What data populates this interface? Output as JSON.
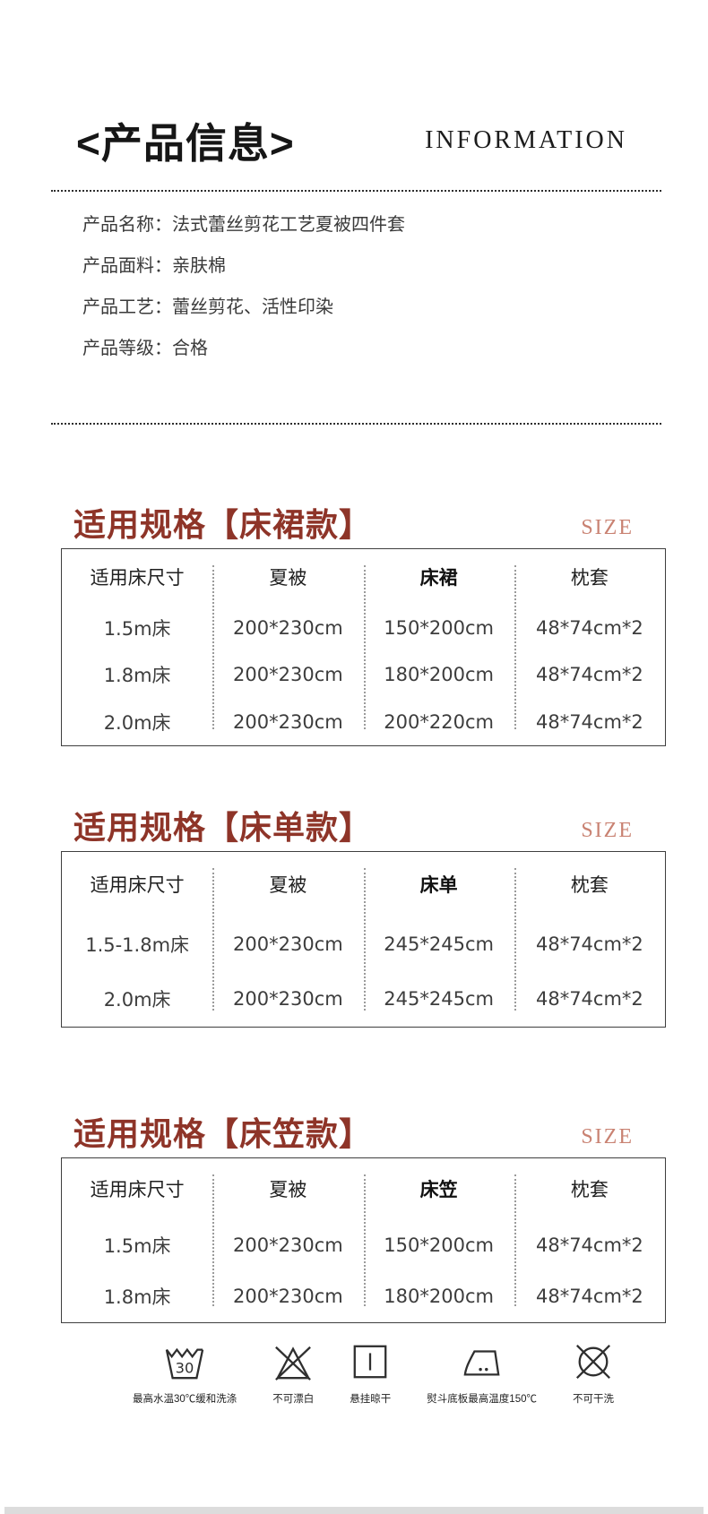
{
  "header": {
    "title": "<产品信息>",
    "subtitle": "INFORMATION"
  },
  "product_info": [
    {
      "label": "产品名称：",
      "value": "法式蕾丝剪花工艺夏被四件套"
    },
    {
      "label": "产品面料：",
      "value": "亲肤棉"
    },
    {
      "label": "产品工艺：",
      "value": "蕾丝剪花、活性印染"
    },
    {
      "label": "产品等级：",
      "value": "合格"
    }
  ],
  "sections": [
    {
      "title": "适用规格【床裙款】",
      "size_label": "SIZE",
      "table": {
        "headers": [
          "适用床尺寸",
          "夏被",
          "床裙",
          "枕套"
        ],
        "bold_col": 2,
        "rows": [
          [
            "1.5m床",
            "200*230cm",
            "150*200cm",
            "48*74cm*2"
          ],
          [
            "1.8m床",
            "200*230cm",
            "180*200cm",
            "48*74cm*2"
          ],
          [
            "2.0m床",
            "200*230cm",
            "200*220cm",
            "48*74cm*2"
          ]
        ]
      }
    },
    {
      "title": "适用规格【床单款】",
      "size_label": "SIZE",
      "table": {
        "headers": [
          "适用床尺寸",
          "夏被",
          "床单",
          "枕套"
        ],
        "bold_col": 2,
        "rows": [
          [
            "1.5-1.8m床",
            "200*230cm",
            "245*245cm",
            "48*74cm*2"
          ],
          [
            "2.0m床",
            "200*230cm",
            "245*245cm",
            "48*74cm*2"
          ]
        ]
      }
    },
    {
      "title": "适用规格【床笠款】",
      "size_label": "SIZE",
      "table": {
        "headers": [
          "适用床尺寸",
          "夏被",
          "床笠",
          "枕套"
        ],
        "bold_col": 2,
        "rows": [
          [
            "1.5m床",
            "200*230cm",
            "150*200cm",
            "48*74cm*2"
          ],
          [
            "1.8m床",
            "200*230cm",
            "180*200cm",
            "48*74cm*2"
          ]
        ]
      }
    }
  ],
  "care_icons": [
    {
      "name": "wash-30-icon",
      "glyph": "30",
      "label": "最高水温30℃缓和洗涤"
    },
    {
      "name": "no-bleach-icon",
      "label": "不可漂白"
    },
    {
      "name": "hang-dry-icon",
      "label": "悬挂晾干"
    },
    {
      "name": "iron-max-150-icon",
      "label": "熨斗底板最高温度150℃"
    },
    {
      "name": "no-dry-clean-icon",
      "label": "不可干洗"
    }
  ],
  "colors": {
    "accent": "#8e3428",
    "size_label": "#c98272",
    "text": "#3a3a3a",
    "table_border": "#3f3f3f"
  }
}
